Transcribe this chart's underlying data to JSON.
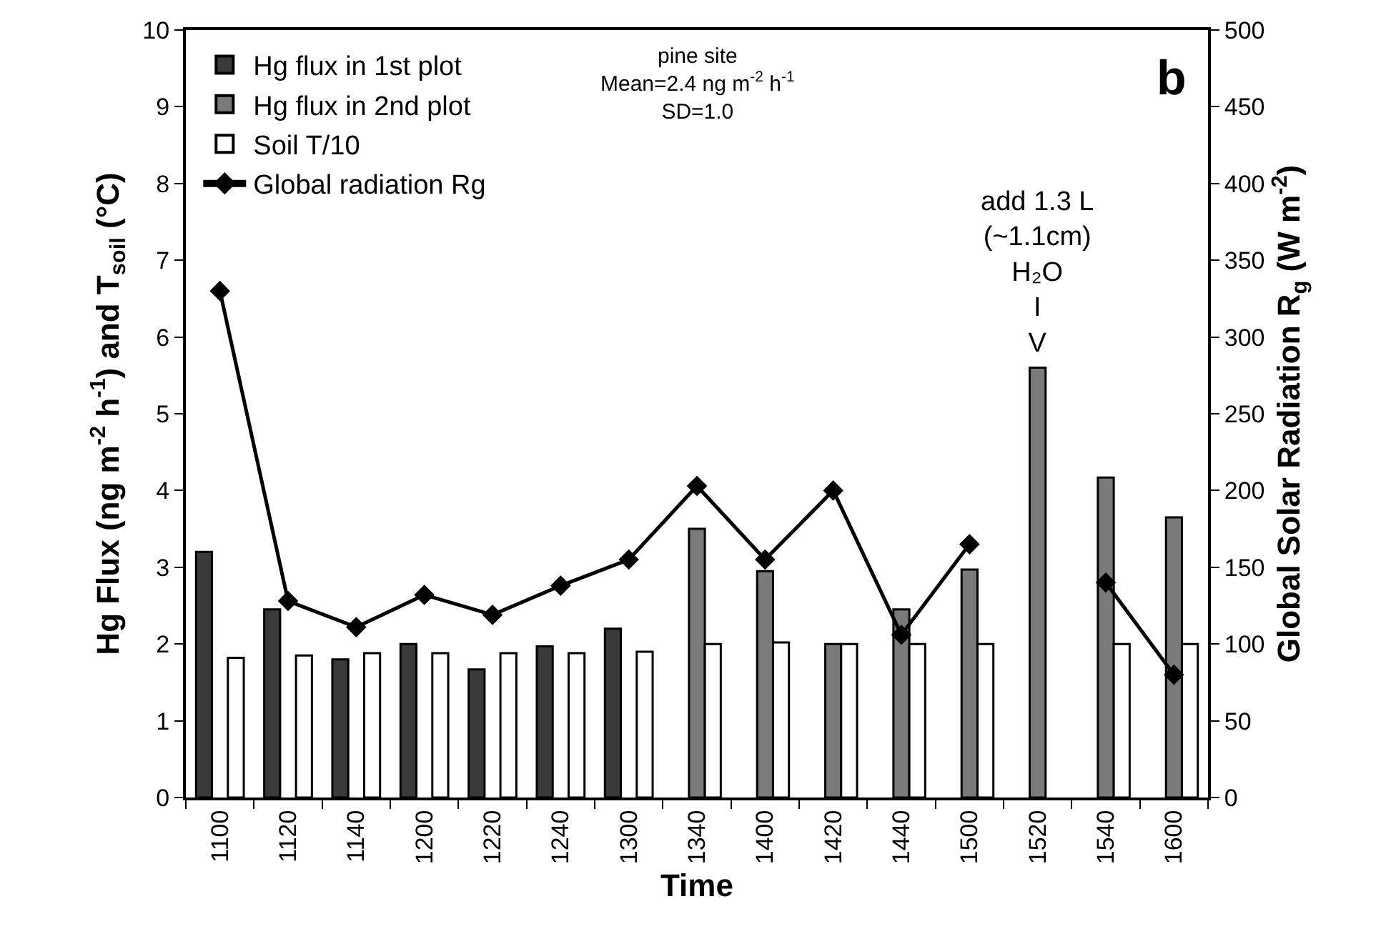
{
  "chart_data": {
    "type": "bar",
    "xlabel": "Time",
    "ylabel": "Hg Flux (ng m$^{-2}$ h$^{-1}$) and T$_{soil}$ (°C)",
    "y2label": "Global Solar Radiation R$_{g}$ (W m$^{-2}$)",
    "categories": [
      "1100",
      "1120",
      "1140",
      "1200",
      "1220",
      "1240",
      "1300",
      "1340",
      "1400",
      "1420",
      "1440",
      "1500",
      "1520",
      "1540",
      "1600"
    ],
    "series": [
      {
        "name": "Hg flux in 1st plot",
        "color": "#3a3a3a",
        "values": [
          3.2,
          2.45,
          1.8,
          2.0,
          1.67,
          1.97,
          2.2,
          null,
          null,
          null,
          null,
          null,
          null,
          null,
          null
        ]
      },
      {
        "name": "Hg flux in 2nd plot",
        "color": "#7a7a7a",
        "values": [
          null,
          null,
          null,
          null,
          null,
          null,
          null,
          3.5,
          2.95,
          2.0,
          2.45,
          2.97,
          5.6,
          4.17,
          3.65
        ]
      },
      {
        "name": "Soil T/10",
        "color": "#ffffff",
        "values": [
          1.82,
          1.85,
          1.88,
          1.88,
          1.88,
          1.88,
          1.9,
          2.0,
          2.02,
          2.0,
          2.0,
          2.0,
          null,
          2.0,
          2.0
        ]
      },
      {
        "name": "Global radiation Rg",
        "type": "line",
        "axis": "y2",
        "color": "#000000",
        "marker": "diamond",
        "line_style": "solid",
        "values": [
          330,
          128,
          111,
          132,
          119,
          138,
          155,
          203,
          155,
          200,
          106,
          165,
          null,
          140,
          80
        ]
      }
    ],
    "ylim": [
      0,
      10
    ],
    "yticks": [
      0,
      1,
      2,
      3,
      4,
      5,
      6,
      7,
      8,
      9,
      10
    ],
    "y2lim": [
      0,
      500
    ],
    "y2ticks": [
      0,
      50,
      100,
      150,
      200,
      250,
      300,
      350,
      400,
      450,
      500
    ],
    "grid": false,
    "legend": "top left",
    "annotations": [
      "pine site\nMean=2.4 ng m$^{-2}$ h$^{-1}$\nSD=1.0",
      "b",
      {
        "text": "add 1.3 L\n(~1.1cm)\nH₂O\nI\nV",
        "x": "1520",
        "y": 5.6
      }
    ]
  }
}
